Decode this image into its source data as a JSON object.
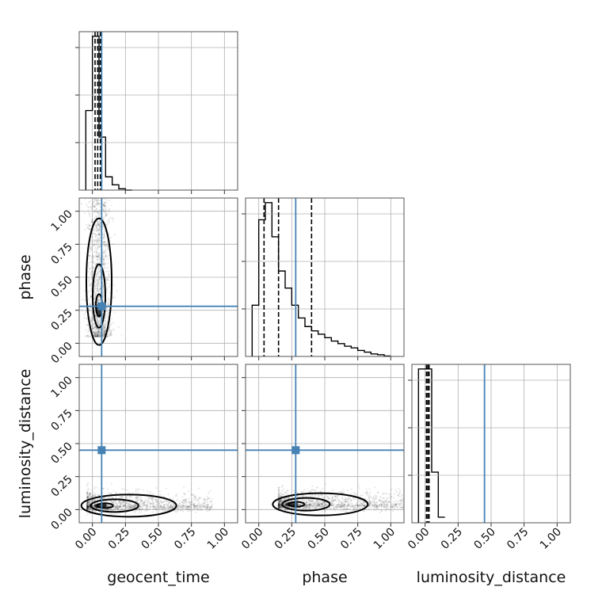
{
  "chart_data": {
    "type": "scatter",
    "subtype": "corner-plot",
    "parameters": [
      "geocent_time",
      "phase",
      "luminosity_distance"
    ],
    "axis_range": [
      -0.1,
      1.1
    ],
    "ticks": [
      0.0,
      0.25,
      0.5,
      0.75,
      1.0
    ],
    "tick_labels": [
      "0.00",
      "0.25",
      "0.50",
      "0.75",
      "1.00"
    ],
    "grid": true,
    "colors": {
      "truth": "#4682b4",
      "histogram": "#000000",
      "samples": "#000000"
    },
    "truths": {
      "geocent_time": 0.07,
      "phase": 0.28,
      "luminosity_distance": 0.45
    },
    "quantiles": {
      "geocent_time": [
        0.02,
        0.04,
        0.06
      ],
      "phase": [
        0.04,
        0.15,
        0.4
      ],
      "luminosity_distance": [
        0.01,
        0.02,
        0.03
      ]
    },
    "histograms": {
      "geocent_time": {
        "bin_edges": [
          -0.05,
          0.0,
          0.05,
          0.1,
          0.15,
          0.2,
          0.25,
          0.3
        ],
        "counts": [
          30,
          58,
          20,
          5,
          2,
          0.5,
          0
        ]
      },
      "phase": {
        "bin_edges": [
          -0.05,
          0.0,
          0.05,
          0.1,
          0.15,
          0.2,
          0.25,
          0.3,
          0.35,
          0.4,
          0.45,
          0.5,
          0.55,
          0.6,
          0.65,
          0.7,
          0.75,
          0.8,
          0.85,
          0.9,
          0.95,
          1.0
        ],
        "counts": [
          6,
          16,
          18,
          14,
          10,
          8,
          6,
          4.5,
          3.5,
          3,
          2.6,
          2.2,
          1.8,
          1.5,
          1.2,
          1.0,
          0.7,
          0.5,
          0.3,
          0.2,
          0.05
        ]
      },
      "luminosity_distance": {
        "bin_edges": [
          -0.05,
          0.0,
          0.05,
          0.1,
          0.15
        ],
        "counts": [
          82,
          82,
          27,
          3
        ]
      }
    },
    "scatter_centers": {
      "phase_vs_geocent_time": {
        "x": 0.05,
        "y": 0.25
      },
      "luminosity_distance_vs_geocent_time": {
        "x": 0.06,
        "y": 0.03
      },
      "luminosity_distance_vs_phase": {
        "x": 0.25,
        "y": 0.04
      }
    }
  }
}
